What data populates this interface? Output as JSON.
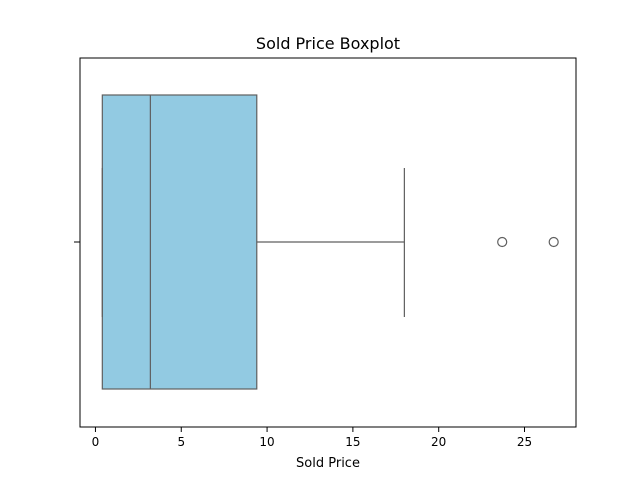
{
  "chart_data": {
    "type": "boxplot",
    "title": "Sold Price Boxplot",
    "xlabel": "Sold Price",
    "ylabel": "",
    "orientation": "horizontal",
    "xlim": [
      -0.9,
      28.0
    ],
    "xticks": [
      0,
      5,
      10,
      15,
      20,
      25
    ],
    "xtick_labels": [
      "0",
      "5",
      "10",
      "15",
      "20",
      "25"
    ],
    "grid": false,
    "legend": "none",
    "box": {
      "whisker_low": 0.4,
      "q1": 0.4,
      "median": 3.2,
      "q3": 9.4,
      "whisker_high": 18.0,
      "outliers": [
        23.7,
        26.7
      ]
    },
    "colors": {
      "box_fill": "#92CAE2",
      "line": "#5f5f5f",
      "frame": "#000000"
    }
  }
}
